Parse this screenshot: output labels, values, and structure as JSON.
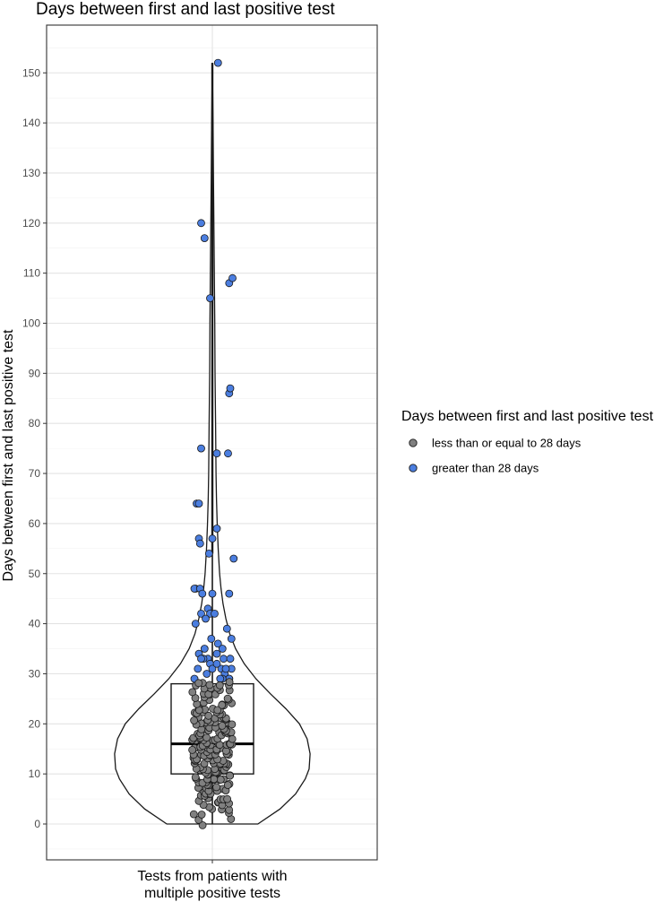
{
  "chart_data": {
    "type": "violin-box-jitter",
    "title": "Days between first and last positive test",
    "xlabel": "",
    "ylabel": "Days between first and last positive test",
    "categories": [
      "Tests from patients with multiple positive tests"
    ],
    "category_lines": [
      "Tests from patients with",
      "multiple positive tests"
    ],
    "ylim": [
      -5,
      157
    ],
    "yticks": [
      0,
      10,
      20,
      30,
      40,
      50,
      60,
      70,
      80,
      90,
      100,
      110,
      120,
      130,
      140,
      150
    ],
    "grid": true,
    "box": {
      "min": 0,
      "q1": 10,
      "median": 16,
      "q3": 28,
      "whisker_high": 54,
      "max": 152
    },
    "violin_density": [
      [
        0,
        0.47
      ],
      [
        3,
        0.7
      ],
      [
        6,
        0.86
      ],
      [
        9,
        0.96
      ],
      [
        11,
        1.0
      ],
      [
        14,
        1.01
      ],
      [
        17,
        0.98
      ],
      [
        20,
        0.9
      ],
      [
        23,
        0.76
      ],
      [
        26,
        0.6
      ],
      [
        29,
        0.45
      ],
      [
        32,
        0.33
      ],
      [
        35,
        0.24
      ],
      [
        38,
        0.18
      ],
      [
        41,
        0.14
      ],
      [
        44,
        0.11
      ],
      [
        47,
        0.09
      ],
      [
        50,
        0.075
      ],
      [
        55,
        0.06
      ],
      [
        60,
        0.05
      ],
      [
        65,
        0.043
      ],
      [
        70,
        0.038
      ],
      [
        80,
        0.033
      ],
      [
        90,
        0.028
      ],
      [
        100,
        0.025
      ],
      [
        110,
        0.02
      ],
      [
        120,
        0.016
      ],
      [
        130,
        0.011
      ],
      [
        140,
        0.007
      ],
      [
        146,
        0.004
      ],
      [
        152,
        0
      ]
    ],
    "legend": {
      "title": "Days between first and last positive test",
      "position": "right",
      "entries": [
        {
          "label": "less than or equal to 28 days",
          "color": "#808080"
        },
        {
          "label": "greater than 28 days",
          "color": "#4b7ee0"
        }
      ]
    },
    "series": [
      {
        "name": "greater than 28 days",
        "color": "#4b7ee0",
        "x_jitter": [
          0.05,
          -0.1,
          -0.07,
          0.15,
          0.18,
          -0.02,
          0.15,
          0.16,
          0.14,
          -0.1,
          0.04,
          -0.14,
          -0.12,
          0.04,
          -0.12,
          -0.11,
          0.0,
          -0.03,
          0.19,
          -0.15,
          -0.16,
          -0.11,
          0.0,
          0.15,
          -0.09,
          -0.04,
          -0.1,
          -0.02,
          0.02,
          -0.06,
          -0.15,
          0.13,
          0.17,
          -0.01,
          0.05,
          0.09,
          -0.07,
          -0.12,
          0.04,
          0.1,
          0.16,
          -0.04,
          -0.02,
          0.17,
          -0.13,
          0.08,
          0.11,
          0.15,
          -0.05,
          0.0,
          0.04,
          -0.08,
          -0.1,
          0.12,
          0.15,
          0.09,
          -0.16,
          0.07
        ],
        "values": [
          152,
          120,
          117,
          108,
          109,
          105,
          86,
          87,
          74,
          75,
          74,
          64,
          64,
          59,
          57,
          56,
          57,
          54,
          53,
          47,
          47,
          47,
          46,
          46,
          46,
          43,
          42,
          42,
          42,
          41,
          40,
          39,
          37,
          37,
          36,
          35,
          35,
          34,
          34,
          33,
          33,
          33,
          32,
          31,
          31,
          31,
          30,
          29,
          30,
          31,
          32,
          33,
          33,
          31,
          29,
          29,
          29,
          29
        ]
      },
      {
        "name": "less than or equal to 28 days",
        "color": "#808080",
        "values": [
          0,
          1,
          1,
          2,
          2,
          2,
          3,
          3,
          3,
          3,
          4,
          4,
          4,
          4,
          4,
          5,
          5,
          5,
          5,
          5,
          5,
          6,
          6,
          6,
          6,
          6,
          6,
          7,
          7,
          7,
          7,
          7,
          7,
          7,
          8,
          8,
          8,
          8,
          8,
          8,
          8,
          9,
          9,
          9,
          9,
          9,
          9,
          9,
          9,
          10,
          10,
          10,
          10,
          10,
          10,
          10,
          10,
          10,
          11,
          11,
          11,
          11,
          11,
          11,
          11,
          11,
          11,
          12,
          12,
          12,
          12,
          12,
          12,
          12,
          12,
          12,
          13,
          13,
          13,
          13,
          13,
          13,
          13,
          13,
          13,
          13,
          14,
          14,
          14,
          14,
          14,
          14,
          14,
          14,
          14,
          14,
          14,
          15,
          15,
          15,
          15,
          15,
          15,
          15,
          15,
          15,
          15,
          15,
          15,
          16,
          16,
          16,
          16,
          16,
          16,
          16,
          16,
          16,
          16,
          16,
          16,
          17,
          17,
          17,
          17,
          17,
          17,
          17,
          17,
          17,
          17,
          17,
          18,
          18,
          18,
          18,
          18,
          18,
          18,
          18,
          18,
          18,
          19,
          19,
          19,
          19,
          19,
          19,
          19,
          19,
          19,
          20,
          20,
          20,
          20,
          20,
          20,
          20,
          20,
          20,
          21,
          21,
          21,
          21,
          21,
          21,
          21,
          21,
          22,
          22,
          22,
          22,
          22,
          22,
          22,
          23,
          23,
          23,
          23,
          23,
          23,
          24,
          24,
          24,
          24,
          24,
          24,
          25,
          25,
          25,
          25,
          25,
          26,
          26,
          26,
          26,
          26,
          27,
          27,
          27,
          27,
          27,
          28,
          28,
          28,
          28,
          28,
          28,
          28
        ]
      }
    ]
  }
}
